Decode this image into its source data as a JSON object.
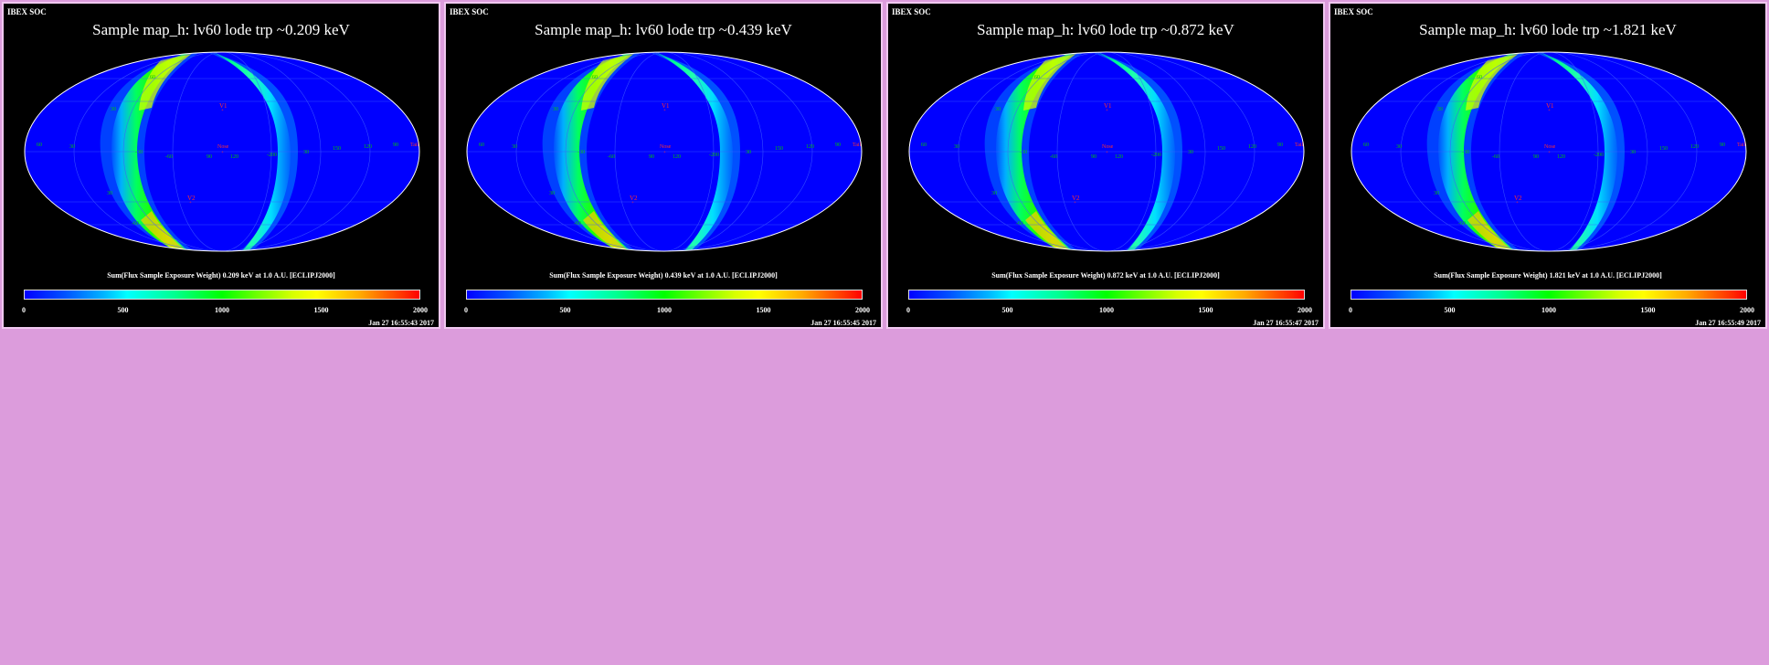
{
  "panels": [
    {
      "soc_label": "IBEX SOC",
      "title": "Sample map_h: lv60 lode trp ~0.209 keV",
      "sum_label": "Sum(Flux Sample Exposure Weight)  0.209 keV at 1.0 A.U. [ECLIPJ2000]",
      "colorbar_ticks": [
        "0",
        "500",
        "1000",
        "1500",
        "2000"
      ],
      "timestamp": "Jan 27 16:55:43 2017"
    },
    {
      "soc_label": "IBEX SOC",
      "title": "Sample map_h: lv60 lode trp ~0.439 keV",
      "sum_label": "Sum(Flux Sample Exposure Weight)  0.439 keV at 1.0 A.U. [ECLIPJ2000]",
      "colorbar_ticks": [
        "0",
        "500",
        "1000",
        "1500",
        "2000"
      ],
      "timestamp": "Jan 27 16:55:45 2017"
    },
    {
      "soc_label": "IBEX SOC",
      "title": "Sample map_h: lv60 lode trp ~0.872 keV",
      "sum_label": "Sum(Flux Sample Exposure Weight)  0.872 keV at 1.0 A.U. [ECLIPJ2000]",
      "colorbar_ticks": [
        "0",
        "500",
        "1000",
        "1500",
        "2000"
      ],
      "timestamp": "Jan 27 16:55:47 2017"
    },
    {
      "soc_label": "IBEX SOC",
      "title": "Sample map_h: lv60 lode trp ~1.821 keV",
      "sum_label": "Sum(Flux Sample Exposure Weight)  1.821 keV at 1.0 A.U. [ECLIPJ2000]",
      "colorbar_ticks": [
        "0",
        "500",
        "1000",
        "1500",
        "2000"
      ],
      "timestamp": "Jan 27 16:55:49 2017"
    }
  ],
  "map_labels": {
    "v1": "V1",
    "v2": "V2",
    "nose": "Nose",
    "tail": "Tail",
    "lat_left_60": "60",
    "lat_left_30": "30",
    "lat_neg30": "-30",
    "lat_neg60": "-60",
    "lon_90": "90",
    "lon_120": "120",
    "lon_200": "-200",
    "lon_30r": "30",
    "lon_150": "150",
    "lon_120r": "120",
    "lon_90r": "90"
  },
  "colors": {
    "background": "#dc9cdc",
    "panel_border": "#f0c8f0",
    "map_base": "#0000ff",
    "marker_red": "#ff3030"
  }
}
